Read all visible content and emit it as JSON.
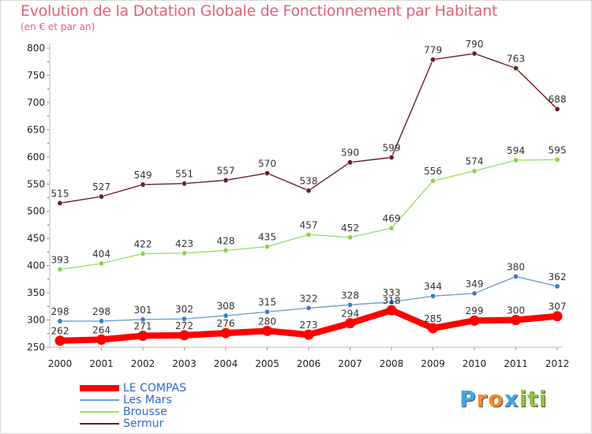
{
  "title": "Evolution de la Dotation Globale de Fonctionnement par Habitant",
  "subtitle": "(en € et par an)",
  "chart_data": {
    "type": "line",
    "title": "Evolution de la Dotation Globale de Fonctionnement par Habitant",
    "subtitle": "(en € et par an)",
    "xlabel": "",
    "ylabel": "",
    "ylim": [
      250,
      800
    ],
    "yticks": [
      250,
      300,
      350,
      400,
      450,
      500,
      550,
      600,
      650,
      700,
      750,
      800
    ],
    "x": [
      "2000",
      "2001",
      "2002",
      "2003",
      "2004",
      "2005",
      "2006",
      "2007",
      "2008",
      "2009",
      "2010",
      "2011",
      "2012"
    ],
    "legend_position": "bottom-left",
    "series": [
      {
        "name": "Sermur",
        "color": "#6b1f26",
        "marker": "#6b1f26",
        "values": [
          515,
          527,
          549,
          551,
          557,
          570,
          538,
          590,
          599,
          779,
          790,
          763,
          688
        ]
      },
      {
        "name": "Brousse",
        "color": "#99e066",
        "marker": "#8ed44c",
        "values": [
          393,
          404,
          422,
          423,
          428,
          435,
          457,
          452,
          469,
          556,
          574,
          594,
          595
        ]
      },
      {
        "name": "Les Mars",
        "color": "#6a9fd6",
        "marker": "#3d7cc9",
        "values": [
          298,
          298,
          301,
          302,
          308,
          315,
          322,
          328,
          333,
          344,
          349,
          380,
          362
        ]
      },
      {
        "name": "LE COMPAS",
        "color": "#ff0000",
        "marker": "#ff0000",
        "values": [
          262,
          264,
          271,
          272,
          276,
          280,
          273,
          294,
          318,
          285,
          299,
          300,
          307
        ]
      }
    ]
  },
  "legend": {
    "items": [
      {
        "name": "LE COMPAS",
        "color": "#ff0000"
      },
      {
        "name": "Les Mars",
        "color": "#6a9fd6"
      },
      {
        "name": "Brousse",
        "color": "#99e066"
      },
      {
        "name": "Sermur",
        "color": "#6b1f26"
      }
    ]
  },
  "logo": {
    "text": "Proxiti",
    "letters": [
      "P",
      "r",
      "o",
      "x",
      "i",
      "t",
      "i"
    ],
    "colors": [
      "#3fa9e0",
      "#f28c28",
      "#f28c28",
      "#3fa9e0",
      "#8dc63f",
      "#8dc63f",
      "#8dc63f"
    ]
  }
}
